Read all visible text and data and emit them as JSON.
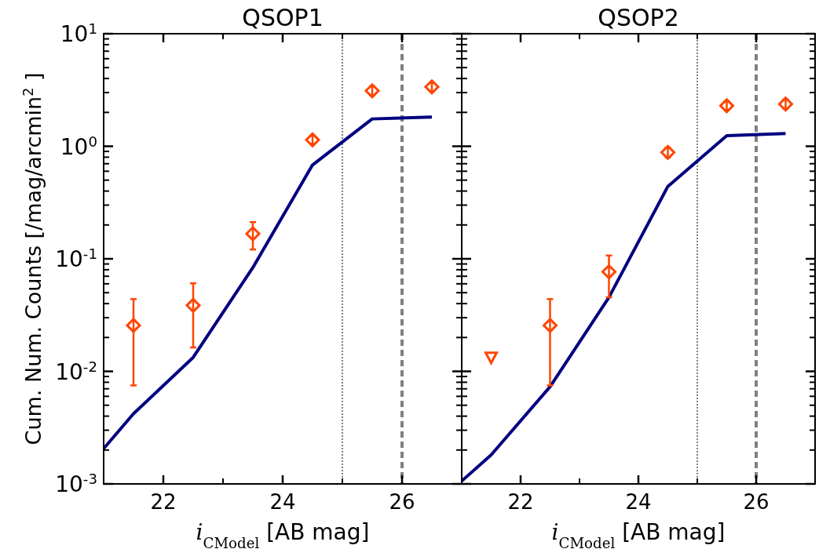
{
  "chart_data": [
    {
      "type": "line",
      "title": "QSOP1",
      "xlabel": "i$_{CModel}$ [AB mag]",
      "ylabel": "Cum. Num. Counts [/mag/arcmin$^{2}$ ]",
      "log": "y",
      "xlim": [
        21,
        27
      ],
      "ylim": [
        0.001,
        10
      ],
      "xticks": [
        22,
        24,
        26
      ],
      "yticks": [
        {
          "value": 0.001,
          "label": "10$^{-3}$"
        },
        {
          "value": 0.01,
          "label": "10$^{-2}$"
        },
        {
          "value": 0.1,
          "label": "10$^{-1}$"
        },
        {
          "value": 1,
          "label": "10$^{0}$"
        },
        {
          "value": 10,
          "label": "10$^{1}$"
        }
      ],
      "grid": false,
      "ref_lines": [
        {
          "axis": "x",
          "value": 25,
          "color": "#808080",
          "line_style": "dotted"
        },
        {
          "axis": "x",
          "value": 26,
          "color": "#808080",
          "line_style": "dashed"
        }
      ],
      "series": [
        {
          "type": "line",
          "color": "#000080",
          "x": [
            21,
            21.5,
            22.5,
            23.5,
            24.5,
            25.5,
            26.5
          ],
          "values": [
            0.00206,
            0.0042,
            0.0133,
            0.0836,
            0.682,
            1.75,
            1.82
          ]
        },
        {
          "type": "scatter",
          "marker": "diamond",
          "color": "#ff4500",
          "x": [
            21.5,
            22.5,
            23.5,
            24.5,
            25.5,
            26.5
          ],
          "values": [
            0.0256,
            0.0386,
            0.167,
            1.14,
            3.11,
            3.37
          ],
          "errors": [
            [
              0.0075,
              0.0439
            ],
            [
              0.0163,
              0.0606
            ],
            [
              0.121,
              0.212
            ],
            [
              1.05,
              1.24
            ],
            [
              2.85,
              3.4
            ],
            [
              3.1,
              3.65
            ]
          ]
        }
      ]
    },
    {
      "type": "line",
      "title": "QSOP2",
      "xlabel": "i$_{CModel}$ [AB mag]",
      "log": "y",
      "xlim": [
        21,
        27
      ],
      "ylim": [
        0.001,
        10
      ],
      "xticks": [
        22,
        24,
        26
      ],
      "yticks": [
        {
          "value": 0.001,
          "label": null
        },
        {
          "value": 0.01,
          "label": null
        },
        {
          "value": 0.1,
          "label": null
        },
        {
          "value": 1,
          "label": null
        },
        {
          "value": 10,
          "label": null
        }
      ],
      "tick_labels": "x",
      "grid": false,
      "ref_lines": [
        {
          "axis": "x",
          "value": 25,
          "color": "#808080",
          "line_style": "dotted"
        },
        {
          "axis": "x",
          "value": 26,
          "color": "#808080",
          "line_style": "dashed"
        }
      ],
      "series": [
        {
          "type": "line",
          "color": "#000080",
          "x": [
            21,
            21.5,
            22.5,
            23.5,
            24.5,
            25.5,
            26.5
          ],
          "values": [
            0.00106,
            0.00181,
            0.0073,
            0.0455,
            0.44,
            1.24,
            1.3
          ]
        },
        {
          "type": "scatter",
          "marker": "diamond",
          "color": "#ff4500",
          "x": [
            22.5,
            23.5,
            24.5,
            25.5,
            26.5
          ],
          "values": [
            0.0256,
            0.0767,
            0.883,
            2.29,
            2.37
          ],
          "errors": [
            [
              0.0075,
              0.0439
            ],
            [
              0.0455,
              0.107
            ],
            [
              0.8,
              0.97
            ],
            [
              2.1,
              2.5
            ],
            [
              2.17,
              2.6
            ]
          ]
        },
        {
          "type": "scatter",
          "marker": "triangle",
          "color": "#ff4500",
          "x": [
            21.5
          ],
          "values": [
            0.0133
          ]
        }
      ]
    }
  ]
}
